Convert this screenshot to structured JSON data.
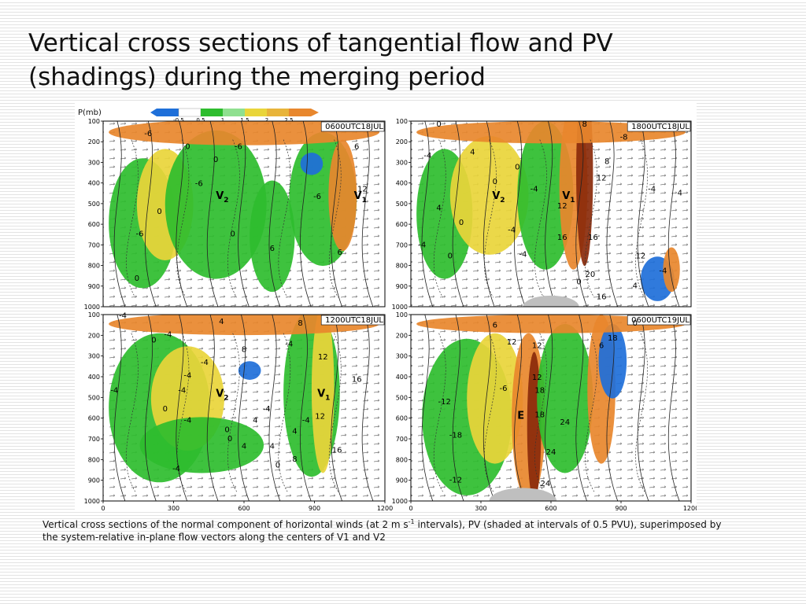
{
  "slide": {
    "title_line1": "Vertical cross sections of tangential flow and PV",
    "title_line2": "(shadings) during the merging period"
  },
  "figure": {
    "y_axis_title": "P(mb)",
    "colorbar_ticks": [
      "-0.5",
      "0.5",
      "1",
      "1.5",
      "2",
      "2.5"
    ],
    "y_ticks": [
      "100",
      "200",
      "300",
      "400",
      "500",
      "600",
      "700",
      "800",
      "900",
      "1000"
    ],
    "x_ticks": [
      "0",
      "300",
      "600",
      "900",
      "1200"
    ],
    "colors": {
      "low": "#1e6fd9",
      "green": "#2ebd2e",
      "lightgreen": "#8fe08f",
      "yellow": "#e9d53a",
      "orange": "#e8872d",
      "dark": "#8a2a0a",
      "white": "#ffffff"
    },
    "panels": [
      {
        "time_label": "0600UTC18JUL",
        "labels": [
          {
            "text": "V",
            "sub": "2"
          },
          {
            "text": "V",
            "sub": "1"
          }
        ],
        "contour_values": [
          "-6",
          "0",
          "-6",
          "0",
          "-6",
          "6",
          "12",
          "0",
          "0",
          "-6",
          "-6",
          "6",
          "0",
          "6"
        ]
      },
      {
        "time_label": "1800UTC18JUL",
        "labels": [
          {
            "text": "V",
            "sub": "2"
          },
          {
            "text": "V",
            "sub": "1"
          }
        ],
        "contour_values": [
          "0",
          "4",
          "0",
          "-4",
          "0",
          "8",
          "-4",
          "12",
          "4",
          "0",
          "-4",
          "12",
          "16",
          "16",
          "-4",
          "0",
          "-4",
          "12",
          "20",
          "4",
          "16",
          "-4",
          "4",
          "0",
          "-4",
          "8",
          "-8"
        ]
      },
      {
        "time_label": "1200UTC18JUL",
        "labels": [
          {
            "text": "V",
            "sub": "2"
          },
          {
            "text": "V",
            "sub": "1"
          }
        ],
        "contour_values": [
          "-4",
          "4",
          "8",
          "0",
          "-4",
          "-4",
          "8",
          "-4",
          "12",
          "-4",
          "16",
          "0",
          "-4",
          "0",
          "4",
          "-4",
          "4",
          "-4",
          "0",
          "4",
          "12",
          "16",
          "4",
          "8",
          "0",
          "-4",
          "-4",
          "-4"
        ]
      },
      {
        "time_label": "0600UTC19JUL",
        "labels": [
          {
            "text": "E",
            "sub": ""
          }
        ],
        "contour_values": [
          "6",
          "0",
          "12",
          "18",
          "12",
          "12",
          "-12",
          "18",
          "-6",
          "18",
          "24",
          "-18",
          "24",
          "-12",
          "24",
          "6"
        ]
      }
    ]
  },
  "caption": {
    "part1": "Vertical cross sections of the normal component of horizontal winds (at 2 m s",
    "superscript": "-1",
    "part2": " intervals), PV (shaded at intervals of 0.5 PVU), superimposed by the system-relative in-plane flow vectors along the centers of V1 and V2"
  }
}
